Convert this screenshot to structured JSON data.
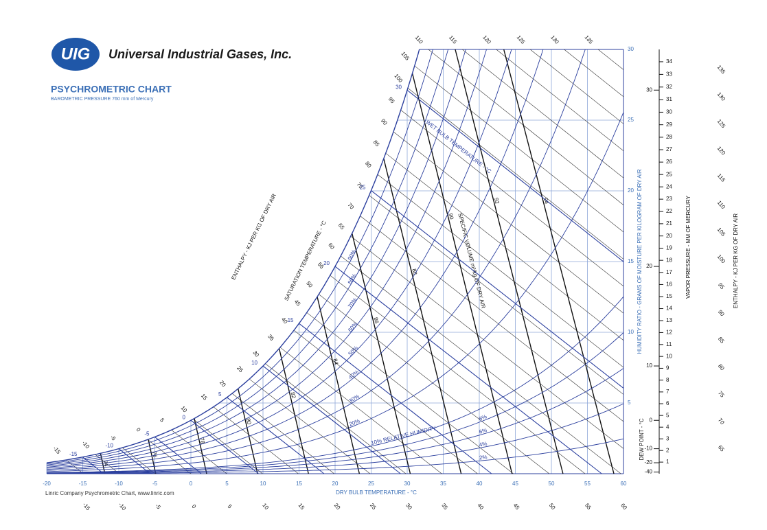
{
  "header": {
    "logo": "UIG",
    "company": "Universal Industrial Gases, Inc.",
    "title": "PSYCHROMETRIC CHART",
    "subtitle": "BAROMETRIC PRESSURE 760 mm of Mercury"
  },
  "footer": "Linric Company Psychrometric Chart, www.linric.com",
  "chart_data": {
    "type": "psychrometric",
    "xlabel": "DRY BULB TEMPERATURE - °C",
    "ylabel": "HUMIDITY RATIO - GRAMS OF MOISTURE PER KILOGRAM OF DRY AIR",
    "xlim": [
      -20,
      60
    ],
    "xticks": [
      -20,
      -15,
      -10,
      -5,
      0,
      5,
      10,
      15,
      20,
      25,
      30,
      35,
      40,
      45,
      50,
      55,
      60
    ],
    "ylim": [
      0,
      30
    ],
    "yticks": [
      5,
      10,
      15,
      20,
      25,
      30
    ],
    "relative_humidity": {
      "values": [
        2,
        4,
        6,
        8,
        10,
        20,
        30,
        40,
        50,
        60,
        70,
        80,
        90
      ],
      "value_labels": [
        "2%",
        "4%",
        "6%",
        "8%",
        "10% RELATIVE HUMIDITY",
        "20%",
        "30%",
        "40%",
        "50%",
        "60%",
        "70%",
        "80%",
        "90%"
      ]
    },
    "wet_bulb": {
      "label": "WET BULB TEMPERATURE - °C",
      "saturation_label": "SATURATION TEMPERATURE - °C",
      "values": [
        -15,
        -10,
        -5,
        0,
        5,
        10,
        15,
        20,
        25,
        30
      ]
    },
    "enthalpy": {
      "label": "ENTHALPY - KJ PER KG OF DRY AIR",
      "values": [
        -15,
        -10,
        -5,
        0,
        5,
        10,
        15,
        20,
        25,
        30,
        35,
        40,
        45,
        50,
        55,
        60,
        65,
        70,
        75,
        80,
        85,
        90,
        95,
        100,
        105,
        110,
        115,
        120,
        125,
        130,
        135
      ]
    },
    "specific_volume": {
      "label": "SPECIFIC VOLUME m³/kg OF DRY AIR",
      "values": [
        74,
        76,
        78,
        80,
        82,
        84,
        86,
        88,
        90,
        92,
        94,
        96
      ]
    },
    "dew_point": {
      "label": "DEW POINT - °C",
      "ticks": [
        -40,
        -20,
        -10,
        0,
        10,
        20,
        30
      ]
    },
    "vapor_pressure": {
      "label": "VAPOR PRESSURE - MM OF MERCURY",
      "ticks": [
        1,
        2,
        3,
        4,
        5,
        6,
        7,
        8,
        9,
        10,
        11,
        12,
        13,
        14,
        15,
        16,
        17,
        18,
        19,
        20,
        21,
        22,
        23,
        24,
        25,
        26,
        27,
        28,
        29,
        30,
        31,
        32,
        33,
        34
      ]
    }
  }
}
